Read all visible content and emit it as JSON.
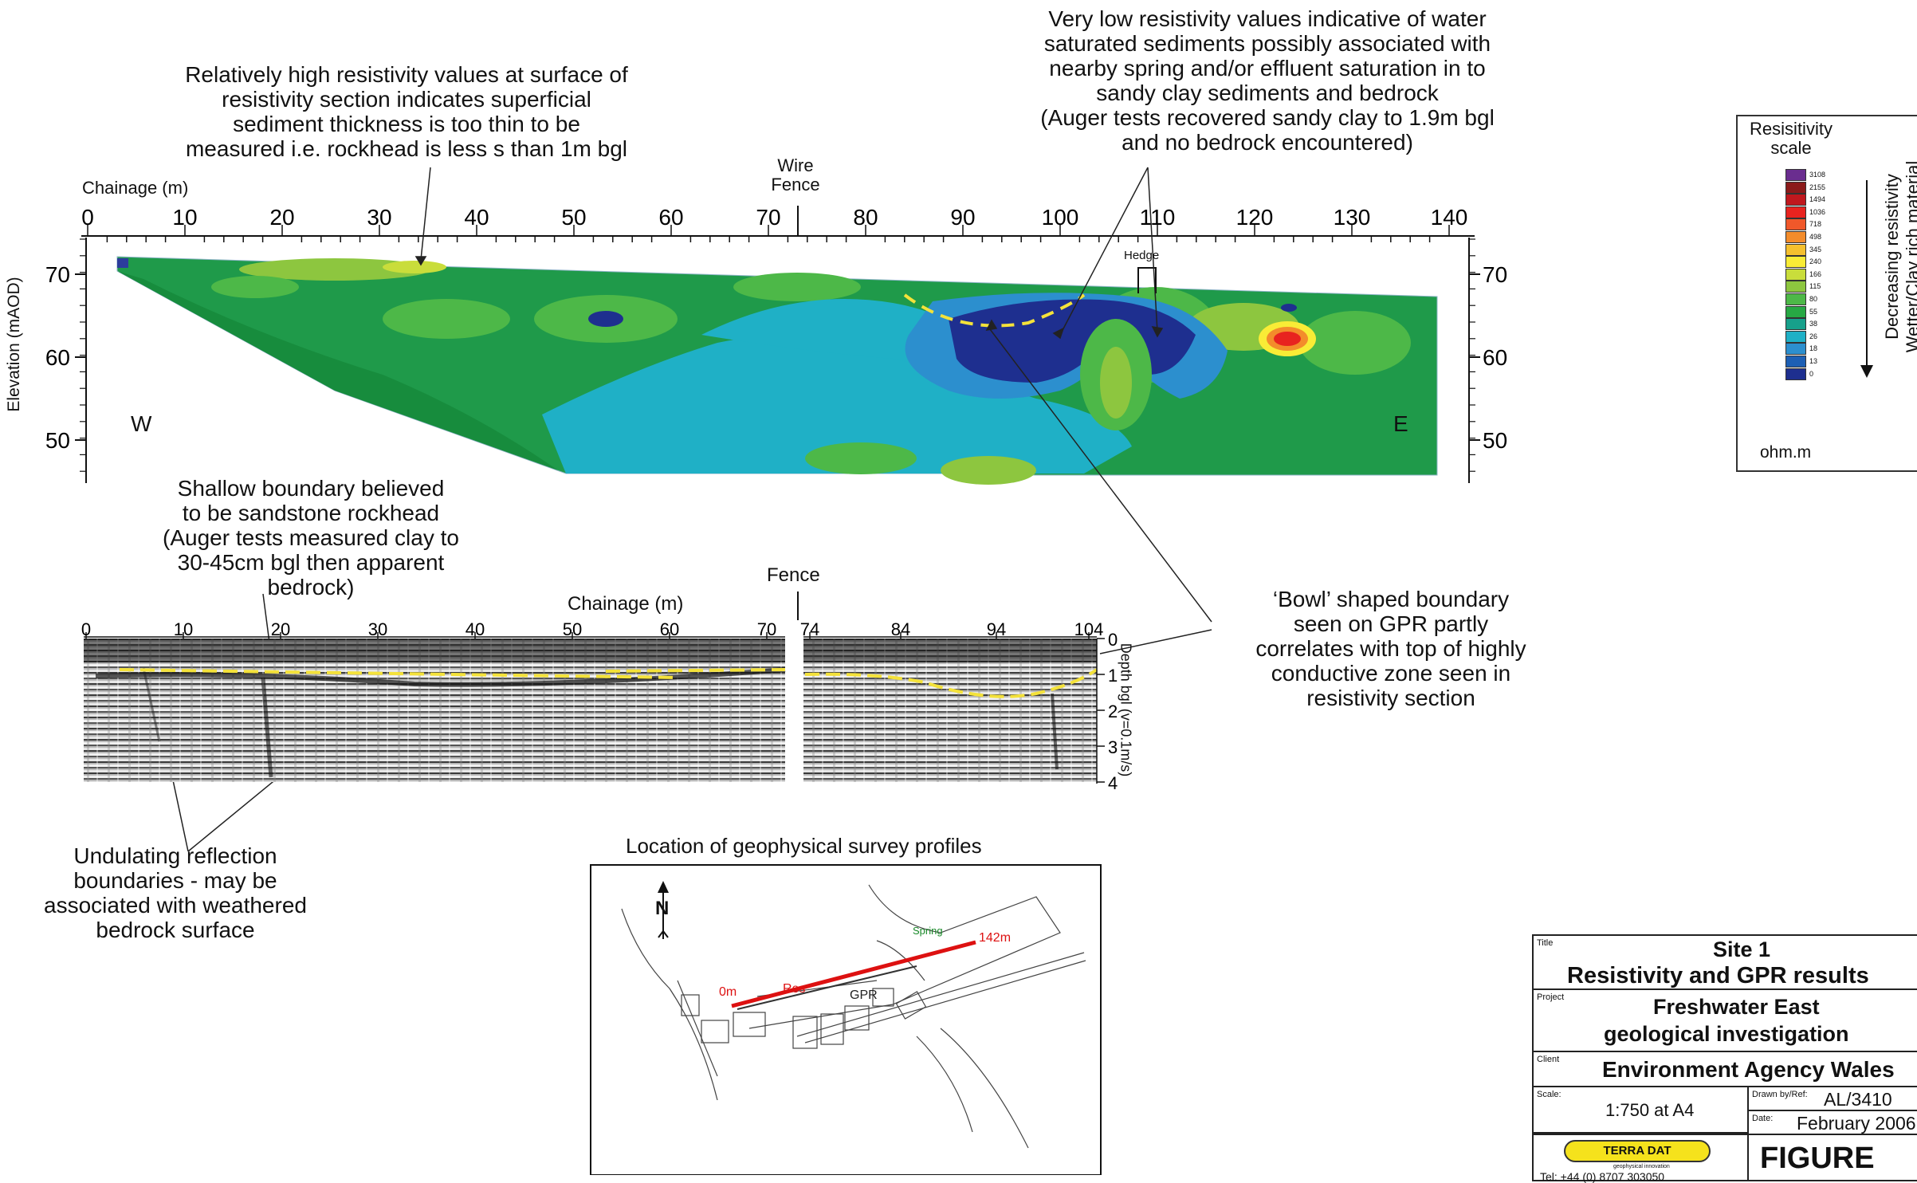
{
  "annotations": {
    "surface_high_res": "Relatively high resistivity values at surface of\nresistivity section indicates superficial\nsediment thickness is too thin to be\nmeasured i.e. rockhead is less s than 1m bgl",
    "water_saturated": "Very low resistivity values indicative of water\nsaturated sediments possibly associated with\nnearby spring and/or effluent saturation in to\nsandy clay sediments and bedrock\n(Auger tests recovered sandy clay to 1.9m bgl\nand no bedrock encountered)",
    "shallow_boundary": "Shallow  boundary believed\nto be sandstone rockhead\n(Auger tests measured clay to\n30-45cm bgl then apparent\nbedrock)",
    "bowl_boundary": "‘Bowl’ shaped boundary\nseen on GPR partly\ncorrelates with top of highly\nconductive zone seen in\nresistivity section",
    "undulating": "Undulating reflection\nboundaries - may be\nassociated with weathered\nbedrock surface"
  },
  "resistivity_section": {
    "chainage_label": "Chainage (m)",
    "chainage_ticks": [
      "0",
      "10",
      "20",
      "30",
      "40",
      "50",
      "60",
      "70",
      "80",
      "90",
      "100",
      "110",
      "120",
      "130",
      "140"
    ],
    "elevation_label": "Elevation (mAOD)",
    "elevation_ticks": [
      "70",
      "60",
      "50"
    ],
    "wire_fence_label": "Wire\nFence",
    "hedge_label": "Hedge",
    "west_label": "W",
    "east_label": "E"
  },
  "gpr_section": {
    "chainage_label": "Chainage (m)",
    "fence_label": "Fence",
    "left_ticks": [
      "0",
      "10",
      "20",
      "30",
      "40",
      "50",
      "60",
      "70"
    ],
    "right_ticks": [
      "74",
      "84",
      "94",
      "104"
    ],
    "depth_ticks": [
      "0",
      "1",
      "2",
      "3",
      "4"
    ],
    "depth_label": "Depth bgl (v=0.1m/s)"
  },
  "legend": {
    "title": "Resisitivity\nscale",
    "values": [
      "3108",
      "2155",
      "1494",
      "1036",
      "718",
      "498",
      "345",
      "240",
      "166",
      "115",
      "80",
      "55",
      "38",
      "26",
      "18",
      "13",
      "0"
    ],
    "colors": [
      "#6a2d8f",
      "#8b1a1a",
      "#c0181e",
      "#e8231f",
      "#f0582a",
      "#f38c2b",
      "#f5c02e",
      "#f9ec36",
      "#c9dd3b",
      "#8dc63f",
      "#4db848",
      "#27a844",
      "#17a08b",
      "#1fb0c6",
      "#2c8fce",
      "#1d5fb4",
      "#1e2f8f"
    ],
    "arrow_label": "Decreasing resistivity\nWetter/Clay rich material",
    "unit": "ohm.m"
  },
  "location_map": {
    "title": "Location of geophysical survey profiles",
    "start_label": "0m",
    "end_label": "142m",
    "res_label": "Res",
    "gpr_label": "GPR",
    "spring_label": "Spring",
    "north_label": "N"
  },
  "title_block": {
    "title_label": "Title",
    "site": "Site 1",
    "title": "Resistivity and GPR results",
    "project_label": "Project",
    "project_line1": "Freshwater East",
    "project_line2": "geological investigation",
    "client_label": "Client",
    "client": "Environment Agency Wales",
    "scale_label": "Scale:",
    "scale": "1:750 at A4",
    "drawn_label": "Drawn by/Ref:",
    "drawn": "AL/3410",
    "date_label": "Date:",
    "date": "February 2006",
    "logo_text": "TERRA DAT",
    "tagline": "geophysical innovation",
    "tel": "Tel: +44 (0) 8707 303050",
    "figure": "FIGURE"
  }
}
